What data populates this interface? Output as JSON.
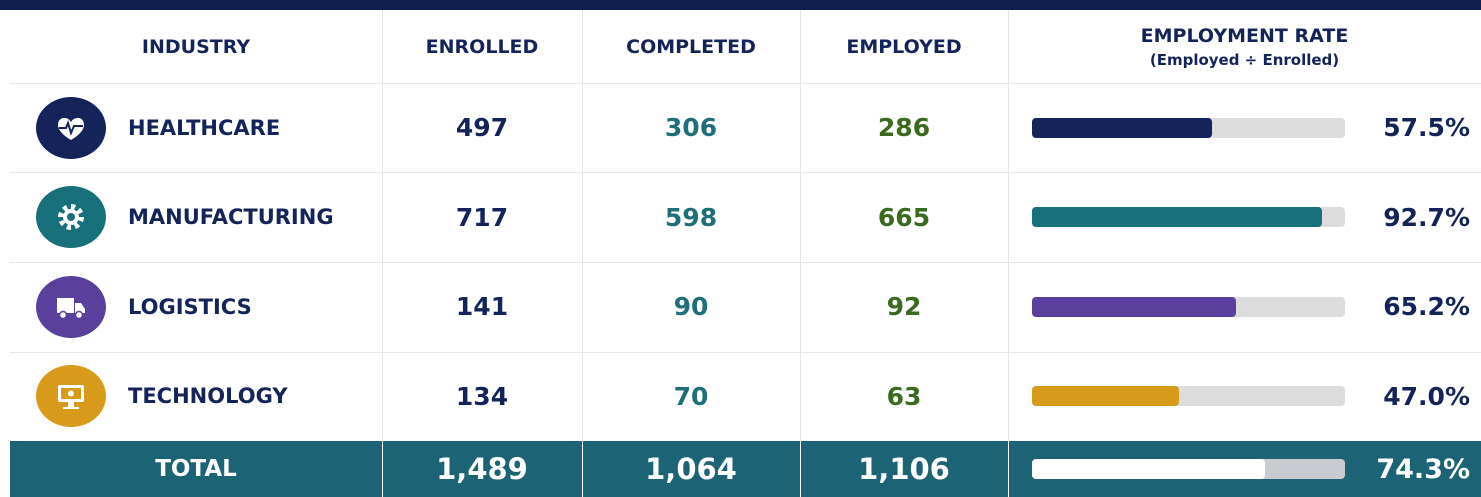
{
  "table": {
    "headers": [
      "INDUSTRY",
      "ENROLLED",
      "COMPLETED",
      "EMPLOYED",
      "EMPLOYMENT RATE"
    ],
    "rate_subheader": "(Employed ÷ Enrolled)",
    "rows": [
      {
        "industry": "HEALTHCARE",
        "enrolled": 497,
        "completed": 306,
        "employed": 286,
        "rate": 57.5,
        "rate_label": "57.5%",
        "color": "#14245a"
      },
      {
        "industry": "MANUFACTURING",
        "enrolled": 717,
        "completed": 598,
        "employed": 665,
        "rate": 92.7,
        "rate_label": "92.7%",
        "color": "#17707a"
      },
      {
        "industry": "LOGISTICS",
        "enrolled": 141,
        "completed": 90,
        "employed": 92,
        "rate": 65.2,
        "rate_label": "65.2%",
        "color": "#5a3f9c"
      },
      {
        "industry": "TECHNOLOGY",
        "enrolled": 134,
        "completed": 70,
        "employed": 63,
        "rate": 47.0,
        "rate_label": "47.0%",
        "color": "#d89a1a"
      }
    ],
    "total": {
      "label": "TOTAL",
      "enrolled": "1,489",
      "completed": "1,064",
      "employed": "1,106",
      "rate": 74.3,
      "rate_label": "74.3%"
    }
  }
}
